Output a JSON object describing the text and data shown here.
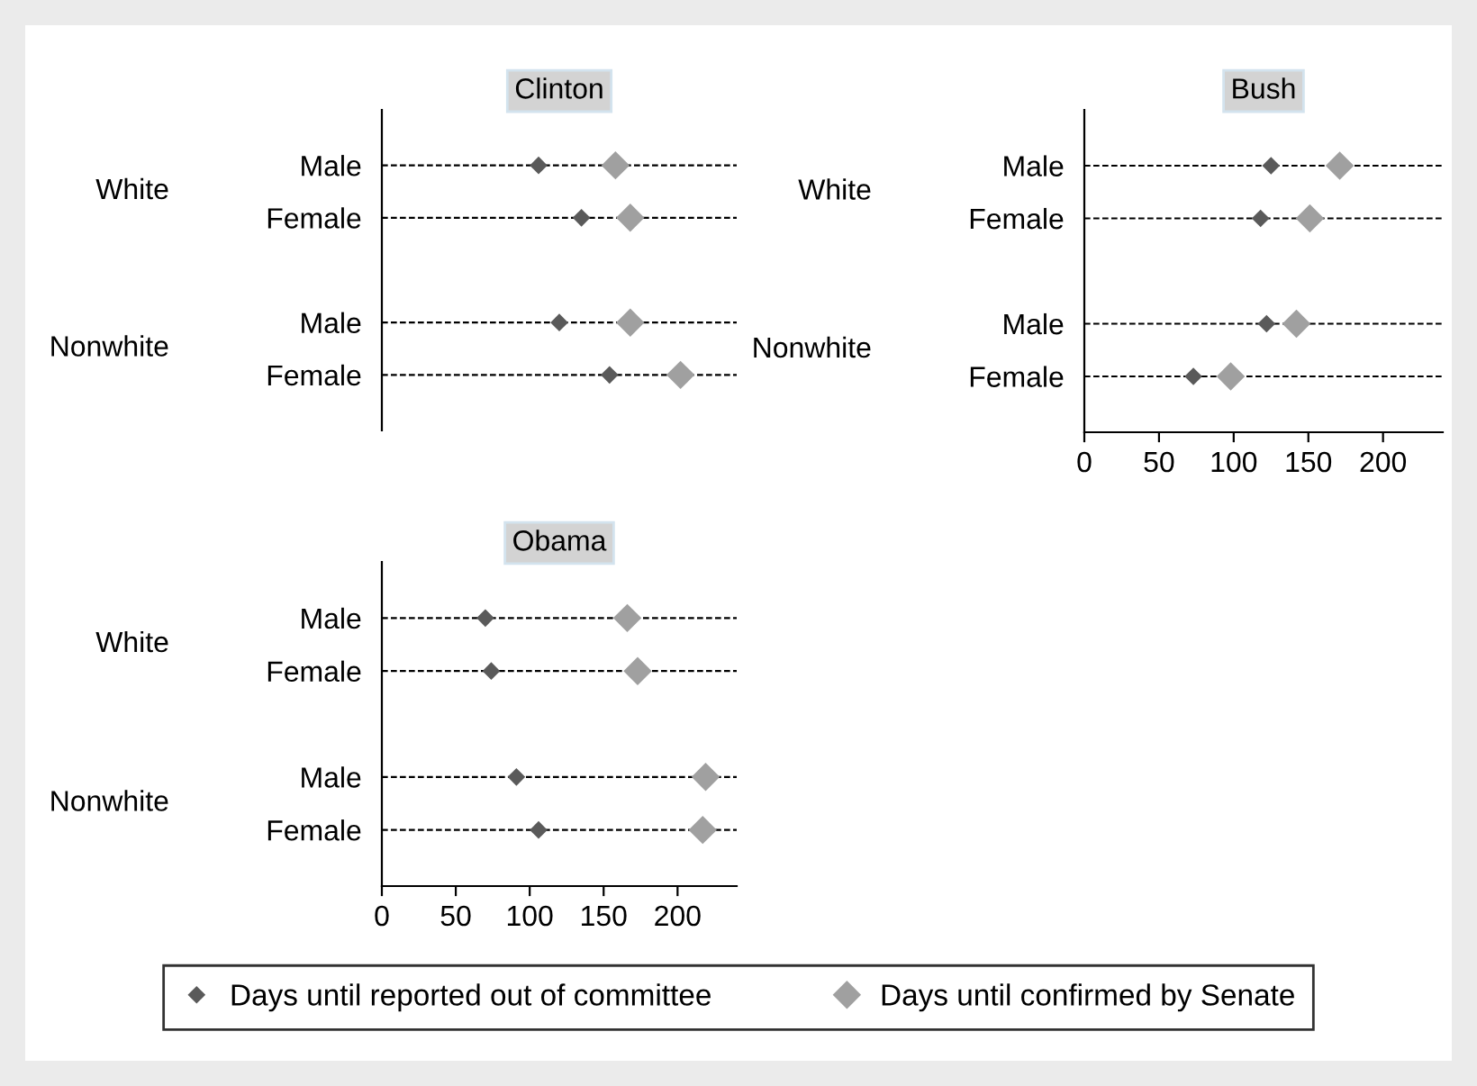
{
  "chart_data": [
    {
      "type": "scatter",
      "orientation": "horizontal",
      "title": "Clinton",
      "categories": [
        "Male",
        "Female",
        null,
        "Male",
        "Female"
      ],
      "annotations": [
        "White",
        "Nonwhite"
      ],
      "xlim": [
        0,
        240
      ],
      "xticks": [
        0,
        50,
        100,
        150,
        200
      ],
      "tick_labels": "y",
      "grid": "y",
      "marker": "diamond",
      "legend": "bottom",
      "series": [
        {
          "name": "Days until reported out of committee",
          "color": "#5a5a5a",
          "values": [
            106,
            135,
            null,
            120,
            154
          ]
        },
        {
          "name": "Days until confirmed by Senate",
          "color": "#a0a0a0",
          "values": [
            158,
            168,
            null,
            168,
            202
          ]
        }
      ]
    },
    {
      "type": "scatter",
      "orientation": "horizontal",
      "title": "Bush",
      "categories": [
        "Male",
        "Female",
        null,
        "Male",
        "Female"
      ],
      "annotations": [
        "White",
        "Nonwhite"
      ],
      "xlim": [
        0,
        240
      ],
      "xticks": [
        0,
        50,
        100,
        150,
        200
      ],
      "grid": "y",
      "marker": "diamond",
      "legend": "bottom",
      "series": [
        {
          "name": "Days until reported out of committee",
          "color": "#5a5a5a",
          "values": [
            125,
            118,
            null,
            122,
            73
          ]
        },
        {
          "name": "Days until confirmed by Senate",
          "color": "#a0a0a0",
          "values": [
            171,
            151,
            null,
            142,
            98
          ]
        }
      ]
    },
    {
      "type": "scatter",
      "orientation": "horizontal",
      "title": "Obama",
      "categories": [
        "Male",
        "Female",
        null,
        "Male",
        "Female"
      ],
      "annotations": [
        "White",
        "Nonwhite"
      ],
      "xlim": [
        0,
        240
      ],
      "xticks": [
        0,
        50,
        100,
        150,
        200
      ],
      "grid": "y",
      "marker": "diamond",
      "legend": "bottom",
      "series": [
        {
          "name": "Days until reported out of committee",
          "color": "#5a5a5a",
          "values": [
            70,
            74,
            null,
            91,
            106
          ]
        },
        {
          "name": "Days until confirmed by Senate",
          "color": "#a0a0a0",
          "values": [
            166,
            173,
            null,
            219,
            217
          ]
        }
      ]
    }
  ]
}
